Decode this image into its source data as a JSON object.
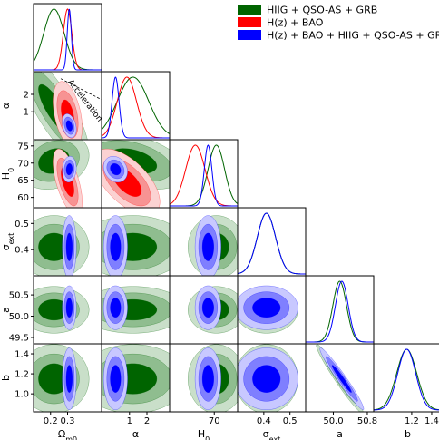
{
  "chart_data": {
    "type": "corner-plot",
    "parameters": [
      {
        "key": "om",
        "label": "Ω",
        "sub": "m0",
        "range": [
          0.1,
          0.5
        ],
        "ticks": [
          0.2,
          0.3
        ],
        "tick_labels": [
          "0.2",
          "0.3"
        ]
      },
      {
        "key": "alpha",
        "label": "α",
        "sub": "",
        "range": [
          -0.6,
          3.3
        ],
        "ticks": [
          1,
          2
        ],
        "tick_labels": [
          "1",
          "2"
        ]
      },
      {
        "key": "h0",
        "label": "H",
        "sub": "0",
        "range": [
          57,
          76.8
        ],
        "ticks": [
          60,
          65,
          70,
          75
        ],
        "tick_labels": [
          "60",
          "65",
          "70",
          "75"
        ]
      },
      {
        "key": "sigext",
        "label": "σ",
        "sub": "ext",
        "range": [
          0.3,
          0.56
        ],
        "ticks": [
          0.4,
          0.5
        ],
        "tick_labels": [
          "0.4",
          "0.5"
        ]
      },
      {
        "key": "a",
        "label": "a",
        "sub": "",
        "range": [
          49.35,
          50.95
        ],
        "ticks": [
          49.5,
          50.0,
          50.5
        ],
        "tick_labels": [
          "49.5",
          "50.0",
          "50.5"
        ]
      },
      {
        "key": "b",
        "label": "b",
        "sub": "",
        "range": [
          0.82,
          1.5
        ],
        "ticks": [
          1.0,
          1.2,
          1.4
        ],
        "tick_labels": [
          "1.0",
          "1.2",
          "1.4"
        ]
      }
    ],
    "x_tick_override": {
      "alpha": {
        "ticks": [
          1,
          2
        ],
        "tick_labels": [
          "1",
          "2"
        ]
      },
      "h0": {
        "ticks": [
          70
        ],
        "tick_labels": [
          "70"
        ]
      },
      "sigext": {
        "ticks": [
          0.4,
          0.5
        ],
        "tick_labels": [
          "0.4",
          "0.5"
        ]
      },
      "a": {
        "ticks": [
          50.0,
          50.8
        ],
        "tick_labels": [
          "50.0",
          "50.8"
        ]
      },
      "b": {
        "ticks": [
          1.2,
          1.4
        ],
        "tick_labels": [
          "1.2",
          "1.4"
        ]
      }
    },
    "series": [
      {
        "name": "HIIG + QSO-AS + GRB",
        "color": "#006400",
        "fills": [
          "#c9dfc9",
          "#8fbd8f",
          "#006400"
        ],
        "params": [
          "om",
          "alpha",
          "h0",
          "sigext",
          "a",
          "b"
        ],
        "mean": {
          "om": 0.22,
          "alpha": 1.2,
          "h0": 70.6,
          "sigext": 0.41,
          "a": 50.15,
          "b": 1.15
        },
        "sd": {
          "om": 0.06,
          "alpha": 0.9,
          "h0": 2.4,
          "sigext": 0.035,
          "a": 0.16,
          "b": 0.1
        },
        "corr": {
          "om|alpha": -0.8,
          "om|h0": 0.2,
          "alpha|h0": -0.4,
          "a|b": -0.97
        }
      },
      {
        "name": "H(z) + BAO",
        "color": "#ff0000",
        "fills": [
          "#fbd2d2",
          "#f79393",
          "#ff0000"
        ],
        "params": [
          "om",
          "alpha",
          "h0"
        ],
        "mean": {
          "om": 0.3,
          "alpha": 0.85,
          "h0": 64.5
        },
        "sd": {
          "om": 0.025,
          "alpha": 0.55,
          "h0": 2.8
        },
        "corr": {
          "om|alpha": -0.4,
          "om|h0": -0.6,
          "alpha|h0": -0.6
        }
      },
      {
        "name": "H(z) + BAO + HIIG + QSO-AS + GRB",
        "color": "#0000ff",
        "fills": [
          "#c8c8ff",
          "#7f7fff",
          "#0000ff"
        ],
        "params": [
          "om",
          "alpha",
          "h0",
          "sigext",
          "a",
          "b"
        ],
        "mean": {
          "om": 0.31,
          "alpha": 0.2,
          "h0": 68.2,
          "sigext": 0.41,
          "a": 50.2,
          "b": 1.15
        },
        "sd": {
          "om": 0.012,
          "alpha": 0.2,
          "h0": 1.1,
          "sigext": 0.035,
          "a": 0.15,
          "b": 0.09
        },
        "corr": {
          "om|alpha": -0.3,
          "om|h0": 0.1,
          "alpha|h0": -0.2,
          "a|b": -0.97
        }
      }
    ],
    "legend": {
      "placement": "top-right"
    },
    "annotation": {
      "text": "Acceleration"
    }
  }
}
